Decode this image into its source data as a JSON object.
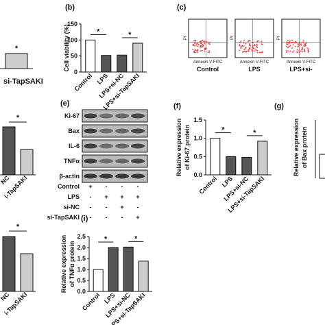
{
  "chart_data": [
    {
      "type": "bar",
      "panel": "(b)",
      "y_label": "Cell viability (%)",
      "categories": [
        "Control",
        "LPS",
        "LPS+si-NC",
        "LPS+si-TapSAKI"
      ],
      "values": [
        100,
        52,
        53,
        90
      ],
      "colors": [
        "#ffffff",
        "#555555",
        "#555555",
        "#cccccc"
      ],
      "ylim": [
        0,
        150
      ],
      "yticks": [
        0,
        50,
        100,
        150
      ],
      "annotations": [
        "*",
        "*"
      ]
    },
    {
      "type": "bar",
      "panel": "(f)",
      "y_label": [
        "Relative expression",
        "of Ki-67 protein"
      ],
      "categories": [
        "Control",
        "LPS",
        "LPS+si-NC",
        "LPS+si-TapSAKI"
      ],
      "values": [
        1.0,
        0.5,
        0.48,
        0.92
      ],
      "colors": [
        "#ffffff",
        "#555555",
        "#555555",
        "#cccccc"
      ],
      "ylim": [
        0,
        1.5
      ],
      "yticks": [
        {
          "value": 0,
          "label": "0.0"
        },
        0.5,
        {
          "value": 1,
          "label": "1.0"
        },
        1.5
      ],
      "annotations": [
        "*",
        "*"
      ]
    },
    {
      "type": "bar",
      "panel": "(i)",
      "y_label": [
        "Relative expression",
        "of TNFα protein"
      ],
      "categories": [
        "Control",
        "LPS",
        "LPS+si-NC",
        "LPS+si-TapSAKI"
      ],
      "values": [
        1.0,
        2.0,
        2.02,
        1.38
      ],
      "colors": [
        "#ffffff",
        "#555555",
        "#555555",
        "#cccccc"
      ],
      "ylim": [
        0,
        2.5
      ],
      "yticks": [
        {
          "value": 0,
          "label": "0.0"
        },
        0.5,
        {
          "value": 1,
          "label": "1.0"
        },
        1.5,
        {
          "value": 2,
          "label": "2.0"
        },
        2.5
      ],
      "annotations": [
        "*",
        "*"
      ]
    }
  ],
  "fragments": {
    "a": {
      "label": "si-TapSAKI",
      "significance": "*"
    },
    "d": {
      "labels": [
        "NC",
        "i-TapSAKI"
      ],
      "significance": "*"
    },
    "h": {
      "labels": [
        "NC",
        "i-TapSAKI"
      ],
      "significance": "*"
    },
    "g": {
      "panel": "(g)",
      "y_label": [
        "Relative expression",
        "of Bax protein"
      ]
    }
  },
  "flow": {
    "panel": "(c)",
    "y_label": "PI",
    "x_label": "Annexin V-FITC",
    "groups": [
      "Control",
      "LPS",
      "LPS+si-"
    ]
  },
  "blot": {
    "panel": "(e)",
    "bands": [
      "Ki-67",
      "Bax",
      "IL-6",
      "TNFα",
      "β-actin"
    ],
    "conditions": [
      {
        "label": "Control",
        "signs": [
          "+",
          "-",
          "-",
          "-"
        ]
      },
      {
        "label": "LPS",
        "signs": [
          "-",
          "+",
          "+",
          "+"
        ]
      },
      {
        "label": "si-NC",
        "signs": [
          "-",
          "-",
          "+",
          "-"
        ]
      },
      {
        "label": "si-TapSAKI",
        "signs": [
          "-",
          "-",
          "-",
          "+"
        ]
      }
    ]
  }
}
